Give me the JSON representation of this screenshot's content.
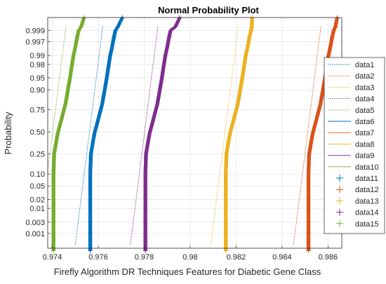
{
  "chart_data": {
    "type": "scatter",
    "title": "Normal Probability Plot",
    "xlabel": "Firefly Algorithm DR Techniques Features for Diabetic Gene Class",
    "ylabel": "Probability",
    "xlim": [
      0.9738,
      0.9866
    ],
    "x_ticks": [
      0.974,
      0.976,
      0.978,
      0.98,
      0.982,
      0.984,
      0.986
    ],
    "x_tick_labels": [
      "0.974",
      "0.976",
      "0.978",
      "0.98",
      "0.982",
      "0.984",
      "0.986"
    ],
    "y_scale": "normal-probability",
    "ylim": [
      0.0002,
      0.99975
    ],
    "y_ticks": [
      0.001,
      0.003,
      0.01,
      0.02,
      0.05,
      0.1,
      0.25,
      0.5,
      0.75,
      0.9,
      0.95,
      0.98,
      0.99,
      0.997,
      0.999
    ],
    "y_tick_labels": [
      "0.001",
      "0.003",
      "0.01",
      "0.02",
      "0.05",
      "0.10",
      "0.25",
      "0.50",
      "0.75",
      "0.90",
      "0.95",
      "0.98",
      "0.99",
      "0.997",
      "0.999"
    ],
    "grid": true,
    "legend_position": "right",
    "legend": [
      "data1",
      "data2",
      "data3",
      "data4",
      "data5",
      "data6",
      "data7",
      "data8",
      "data9",
      "data10",
      "data11",
      "data12",
      "data13",
      "data14",
      "data15"
    ],
    "series": [
      {
        "name": "data11",
        "color": "#0072BD",
        "base_x": 0.97565,
        "quantiles": [
          [
            0.00015,
            0.97565
          ],
          [
            0.0005,
            0.97565
          ],
          [
            0.001,
            0.97565
          ],
          [
            0.003,
            0.97565
          ],
          [
            0.01,
            0.97565
          ],
          [
            0.05,
            0.97565
          ],
          [
            0.1,
            0.97565
          ],
          [
            0.25,
            0.97568
          ],
          [
            0.4,
            0.97578
          ],
          [
            0.5,
            0.97585
          ],
          [
            0.6,
            0.97595
          ],
          [
            0.7,
            0.97605
          ],
          [
            0.8,
            0.97617
          ],
          [
            0.9,
            0.97628
          ],
          [
            0.95,
            0.97637
          ],
          [
            0.97,
            0.97642
          ],
          [
            0.98,
            0.97646
          ],
          [
            0.99,
            0.97652
          ],
          [
            0.995,
            0.9766
          ],
          [
            0.998,
            0.97668
          ],
          [
            0.999,
            0.97675
          ],
          [
            0.9993,
            0.97685
          ],
          [
            0.99975,
            0.97705
          ]
        ],
        "fit_points": [
          [
            0.975,
            0.0003
          ],
          [
            0.9762,
            0.9994
          ]
        ]
      },
      {
        "name": "data12",
        "color": "#D95319",
        "base_x": 0.98515,
        "quantiles": [
          [
            0.00015,
            0.98515
          ],
          [
            0.0005,
            0.98515
          ],
          [
            0.001,
            0.98515
          ],
          [
            0.003,
            0.98515
          ],
          [
            0.01,
            0.98515
          ],
          [
            0.05,
            0.98515
          ],
          [
            0.1,
            0.98515
          ],
          [
            0.25,
            0.98518
          ],
          [
            0.4,
            0.98528
          ],
          [
            0.5,
            0.98535
          ],
          [
            0.6,
            0.98545
          ],
          [
            0.7,
            0.98555
          ],
          [
            0.8,
            0.98567
          ],
          [
            0.9,
            0.98578
          ],
          [
            0.95,
            0.98587
          ],
          [
            0.97,
            0.98592
          ],
          [
            0.98,
            0.98596
          ],
          [
            0.99,
            0.98602
          ],
          [
            0.995,
            0.9861
          ],
          [
            0.998,
            0.98618
          ],
          [
            0.999,
            0.98625
          ],
          [
            0.9993,
            0.98632
          ],
          [
            0.99975,
            0.9864
          ]
        ],
        "fit_points": [
          [
            0.9845,
            0.0003
          ],
          [
            0.9857,
            0.9994
          ]
        ]
      },
      {
        "name": "data13",
        "color": "#EDB120",
        "base_x": 0.98155,
        "quantiles": [
          [
            0.00015,
            0.98155
          ],
          [
            0.0005,
            0.98155
          ],
          [
            0.001,
            0.98155
          ],
          [
            0.003,
            0.98155
          ],
          [
            0.01,
            0.98155
          ],
          [
            0.05,
            0.98155
          ],
          [
            0.1,
            0.98155
          ],
          [
            0.25,
            0.98158
          ],
          [
            0.4,
            0.98168
          ],
          [
            0.5,
            0.98175
          ],
          [
            0.6,
            0.98185
          ],
          [
            0.7,
            0.98195
          ],
          [
            0.8,
            0.98207
          ],
          [
            0.9,
            0.98218
          ],
          [
            0.95,
            0.98227
          ],
          [
            0.97,
            0.98232
          ],
          [
            0.98,
            0.98236
          ],
          [
            0.99,
            0.98242
          ],
          [
            0.995,
            0.9825
          ],
          [
            0.998,
            0.98258
          ],
          [
            0.999,
            0.98265
          ],
          [
            0.9993,
            0.98268
          ],
          [
            0.99975,
            0.9827
          ]
        ],
        "fit_points": [
          [
            0.9809,
            0.0003
          ],
          [
            0.9821,
            0.9994
          ]
        ]
      },
      {
        "name": "data14",
        "color": "#7E2F8E",
        "base_x": 0.97805,
        "quantiles": [
          [
            0.00015,
            0.97805
          ],
          [
            0.0005,
            0.97805
          ],
          [
            0.001,
            0.97805
          ],
          [
            0.003,
            0.97805
          ],
          [
            0.01,
            0.97805
          ],
          [
            0.05,
            0.97805
          ],
          [
            0.1,
            0.97805
          ],
          [
            0.25,
            0.97808
          ],
          [
            0.4,
            0.97818
          ],
          [
            0.5,
            0.97825
          ],
          [
            0.6,
            0.97835
          ],
          [
            0.7,
            0.97845
          ],
          [
            0.8,
            0.97857
          ],
          [
            0.9,
            0.97868
          ],
          [
            0.95,
            0.97877
          ],
          [
            0.97,
            0.97882
          ],
          [
            0.98,
            0.97886
          ],
          [
            0.99,
            0.97892
          ],
          [
            0.995,
            0.979
          ],
          [
            0.998,
            0.97908
          ],
          [
            0.999,
            0.97915
          ],
          [
            0.9993,
            0.97935
          ],
          [
            0.99975,
            0.97955
          ]
        ],
        "fit_points": [
          [
            0.9774,
            0.0003
          ],
          [
            0.9786,
            0.9994
          ]
        ]
      },
      {
        "name": "data15",
        "color": "#77AC30",
        "base_x": 0.97405,
        "quantiles": [
          [
            0.00015,
            0.97405
          ],
          [
            0.0005,
            0.97405
          ],
          [
            0.001,
            0.97405
          ],
          [
            0.003,
            0.97405
          ],
          [
            0.01,
            0.97405
          ],
          [
            0.05,
            0.97405
          ],
          [
            0.1,
            0.97405
          ],
          [
            0.25,
            0.97408
          ],
          [
            0.4,
            0.97418
          ],
          [
            0.5,
            0.97425
          ],
          [
            0.6,
            0.97435
          ],
          [
            0.7,
            0.97445
          ],
          [
            0.8,
            0.97457
          ],
          [
            0.9,
            0.97468
          ],
          [
            0.95,
            0.97477
          ],
          [
            0.97,
            0.97482
          ],
          [
            0.98,
            0.97486
          ],
          [
            0.99,
            0.97492
          ],
          [
            0.995,
            0.975
          ],
          [
            0.998,
            0.97508
          ],
          [
            0.999,
            0.97515
          ],
          [
            0.9993,
            0.97525
          ],
          [
            0.99975,
            0.97538
          ]
        ],
        "fit_points": [
          [
            0.9734,
            0.0003
          ],
          [
            0.9746,
            0.9994
          ]
        ]
      }
    ]
  }
}
